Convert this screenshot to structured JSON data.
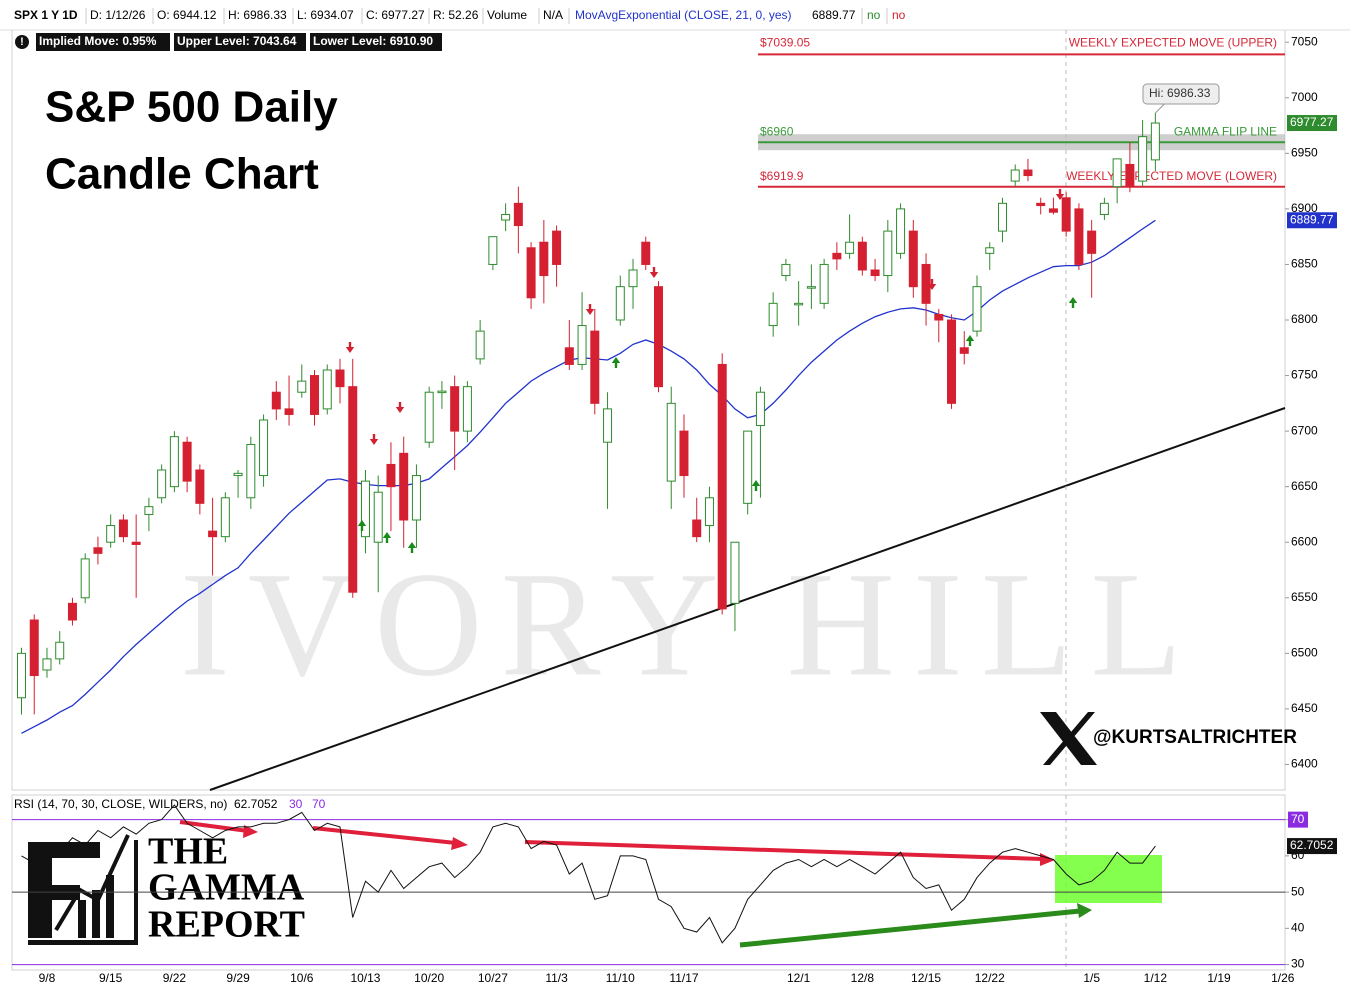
{
  "chart_data": [
    {
      "type": "candlestick",
      "symbol": "SPX 1 Y 1D",
      "header": [
        "D: 1/12/26",
        "O: 6944.12",
        "H: 6986.33",
        "L: 6934.07",
        "C: 6977.27",
        "R: 52.26",
        "Volume",
        "N/A"
      ],
      "header_flags": [
        "no",
        "no"
      ],
      "info": [
        "Implied Move: 0.95%",
        "Upper Level: 7043.64",
        "Lower Level: 6910.90"
      ],
      "title": [
        "S&P 500 Daily",
        "Candle Chart"
      ],
      "categories": [
        null,
        null,
        "9/8",
        null,
        null,
        null,
        null,
        "9/15",
        null,
        null,
        null,
        null,
        "9/22",
        null,
        null,
        null,
        null,
        "9/29",
        null,
        null,
        null,
        null,
        "10/6",
        null,
        null,
        null,
        null,
        "10/13",
        null,
        null,
        null,
        null,
        "10/20",
        null,
        null,
        null,
        null,
        "10/27",
        null,
        null,
        null,
        null,
        "11/3",
        null,
        null,
        null,
        null,
        "11/10",
        null,
        null,
        null,
        null,
        "11/17",
        null,
        null,
        null,
        null,
        null,
        null,
        null,
        null,
        "12/1",
        null,
        null,
        null,
        null,
        "12/8",
        null,
        null,
        null,
        null,
        "12/15",
        null,
        null,
        null,
        null,
        "12/22",
        null,
        null,
        null,
        null,
        null,
        null,
        null,
        "1/5",
        null,
        null,
        null,
        null,
        "1/12",
        null,
        null,
        null,
        null,
        "1/19",
        null,
        null,
        null,
        null,
        "1/26"
      ],
      "open": [
        6460,
        6530,
        6485,
        6495,
        6545,
        6550,
        6595,
        6600,
        6620,
        6600,
        6625,
        6640,
        6650,
        6690,
        6665,
        6610,
        6605,
        6660,
        6640,
        6660,
        6735,
        6720,
        6735,
        6750,
        6720,
        6755,
        6740,
        6605,
        6600,
        6670,
        6680,
        6620,
        6690,
        6735,
        6740,
        6700,
        6765,
        6850,
        6890,
        6905,
        6865,
        6870,
        6880,
        6775,
        6760,
        6790,
        6690,
        6800,
        6830,
        6870,
        6830,
        6655,
        6700,
        6620,
        6615,
        6760,
        6545,
        6635,
        6705,
        6795,
        6840,
        6815,
        6830,
        6815,
        6860,
        6860,
        6870,
        6845,
        6840,
        6860,
        6880,
        6850,
        6805,
        6800,
        6775,
        6790,
        6860,
        6880,
        6925,
        6935,
        6905,
        6900,
        6910,
        6900,
        6880,
        6895,
        6920,
        6940,
        6925,
        6944.12,
        null,
        null,
        null,
        null,
        null,
        null,
        null,
        null,
        null,
        null
      ],
      "high": [
        6505,
        6535,
        6505,
        6520,
        6550,
        6590,
        6605,
        6625,
        6625,
        6625,
        6640,
        6670,
        6700,
        6695,
        6670,
        6640,
        6645,
        6665,
        6695,
        6715,
        6745,
        6750,
        6760,
        6755,
        6760,
        6765,
        6765,
        6665,
        6660,
        6690,
        6695,
        6670,
        6740,
        6745,
        6750,
        6745,
        6800,
        6875,
        6905,
        6920,
        6870,
        6890,
        6885,
        6800,
        6825,
        6810,
        6735,
        6840,
        6855,
        6875,
        6835,
        6740,
        6715,
        6640,
        6650,
        6770,
        6600,
        6700,
        6740,
        6825,
        6855,
        6835,
        6850,
        6855,
        6870,
        6895,
        6875,
        6855,
        6890,
        6905,
        6890,
        6860,
        6810,
        6805,
        6790,
        6840,
        6870,
        6910,
        6940,
        6945,
        6910,
        6910,
        6915,
        6905,
        6890,
        6910,
        6945,
        6960,
        6980,
        6986.33,
        null,
        null,
        null,
        null,
        null,
        null,
        null,
        null,
        null,
        null
      ],
      "low": [
        6445,
        6445,
        6478,
        6490,
        6525,
        6545,
        6580,
        6595,
        6600,
        6550,
        6610,
        6635,
        6645,
        6645,
        6625,
        6570,
        6600,
        6640,
        6630,
        6650,
        6710,
        6705,
        6730,
        6705,
        6715,
        6725,
        6550,
        6590,
        6555,
        6610,
        6595,
        6595,
        6685,
        6720,
        6665,
        6690,
        6760,
        6845,
        6880,
        6860,
        6810,
        6815,
        6830,
        6755,
        6755,
        6715,
        6630,
        6795,
        6810,
        6845,
        6735,
        6630,
        6640,
        6600,
        6600,
        6535,
        6520,
        6625,
        6640,
        6785,
        6835,
        6795,
        6810,
        6810,
        6845,
        6855,
        6840,
        6835,
        6825,
        6855,
        6820,
        6795,
        6780,
        6720,
        6760,
        6785,
        6845,
        6870,
        6920,
        6925,
        6895,
        6895,
        6875,
        6845,
        6820,
        6890,
        6905,
        6915,
        6920,
        6934.07,
        null,
        null,
        null,
        null,
        null,
        null,
        null,
        null,
        null,
        null
      ],
      "close": [
        6500,
        6480,
        6495,
        6510,
        6530,
        6585,
        6590,
        6615,
        6605,
        6598,
        6632,
        6665,
        6695,
        6655,
        6635,
        6605,
        6640,
        6662,
        6688,
        6710,
        6720,
        6715,
        6745,
        6715,
        6755,
        6740,
        6555,
        6655,
        6645,
        6650,
        6620,
        6660,
        6735,
        6736,
        6700,
        6740,
        6790,
        6875,
        6895,
        6885,
        6820,
        6840,
        6850,
        6760,
        6795,
        6725,
        6720,
        6830,
        6845,
        6850,
        6740,
        6725,
        6660,
        6605,
        6640,
        6540,
        6600,
        6700,
        6735,
        6815,
        6850,
        6815,
        6830,
        6850,
        6855,
        6870,
        6845,
        6840,
        6880,
        6900,
        6830,
        6815,
        6800,
        6725,
        6770,
        6830,
        6865,
        6905,
        6935,
        6930,
        6903,
        6897,
        6880,
        6850,
        6860,
        6905,
        6945,
        6920,
        6965,
        6977.27,
        null,
        null,
        null,
        null,
        null,
        null,
        null,
        null,
        null,
        null
      ],
      "up_color": "#2e8b2e",
      "down_color": "#d42030",
      "series": [
        {
          "name": "MovAvgExponential (CLOSE, 21, 0, yes)",
          "color": "#2233cc",
          "values": [
            6428,
            6434,
            6440,
            6447,
            6453,
            6463,
            6474,
            6485,
            6497,
            6508,
            6518,
            6528,
            6538,
            6547,
            6554,
            6562,
            6570,
            6577,
            6590,
            6602,
            6614,
            6626,
            6636,
            6646,
            6656,
            6657,
            6654,
            6652,
            6651,
            6651,
            6651,
            6653,
            6657,
            6667,
            6677,
            6687,
            6699,
            6712,
            6725,
            6735,
            6745,
            6752,
            6758,
            6764,
            6766,
            6765,
            6764,
            6770,
            6778,
            6782,
            6778,
            6772,
            6765,
            6755,
            6742,
            6732,
            6720,
            6712,
            6715,
            6725,
            6737,
            6750,
            6762,
            6772,
            6782,
            6790,
            6797,
            6803,
            6807,
            6810,
            6811,
            6809,
            6805,
            6802,
            6800,
            6808,
            6818,
            6826,
            6832,
            6838,
            6843,
            6848,
            6849,
            6849,
            6852,
            6858,
            6866,
            6874,
            6882,
            6889.77,
            null,
            null,
            null,
            null,
            null,
            null,
            null,
            null,
            null,
            null
          ]
        }
      ],
      "levels": [
        {
          "value": 7039.05,
          "label": "$7039.05",
          "name": "WEEKLY EXPECTED MOVE (UPPER)",
          "color": "#d62839"
        },
        {
          "value": 6960,
          "label": "$6960",
          "name": "GAMMA FLIP LINE",
          "color": "#3a9a3a",
          "band": true
        },
        {
          "value": 6919.9,
          "label": "$6919.9",
          "name": "WEEKLY EXPECTED MOVE (LOWER)",
          "color": "#d62839"
        }
      ],
      "hi_label": "Hi: 6986.33",
      "handle": "@KURTSALTRICHTER",
      "watermark": "IVORY HILL",
      "ylim": [
        6377,
        7061
      ],
      "yticks": [
        6400,
        6450,
        6500,
        6550,
        6600,
        6650,
        6700,
        6750,
        6800,
        6850,
        6900,
        6950,
        7000,
        7050
      ]
    },
    {
      "type": "line",
      "title": "RSI (14, 70, 30, CLOSE, WILDERS, no)",
      "overbought": 70,
      "oversold": 30,
      "midline": 50,
      "level_color": "#8a2be2",
      "series": [
        {
          "color": "#111111",
          "values": [
            60,
            58,
            63,
            61,
            65,
            63,
            67,
            65,
            68,
            66,
            69,
            70,
            74,
            69,
            67,
            65,
            67,
            68,
            68,
            69,
            69,
            70,
            72,
            67,
            69,
            68,
            43,
            53,
            50,
            56,
            51,
            54,
            57,
            58,
            54,
            57,
            61,
            68,
            69,
            68,
            62,
            64,
            63,
            55,
            58,
            48,
            49,
            60,
            60,
            59,
            48,
            46,
            40,
            39,
            43,
            36,
            40,
            48,
            52,
            56,
            58,
            59,
            57,
            59,
            57,
            59,
            57,
            55,
            58,
            61,
            54,
            51,
            52,
            45,
            48,
            54,
            58,
            61,
            62,
            61,
            60,
            59,
            55,
            52,
            53,
            56,
            61,
            58,
            58,
            62.7052,
            null,
            null,
            null,
            null,
            null,
            null,
            null,
            null,
            null,
            null
          ]
        }
      ],
      "ylim": [
        28.5,
        76.8
      ],
      "yticks": [
        30,
        40,
        50,
        60,
        70
      ]
    }
  ],
  "logo": [
    "THE",
    "GAMMA",
    "REPORT"
  ]
}
